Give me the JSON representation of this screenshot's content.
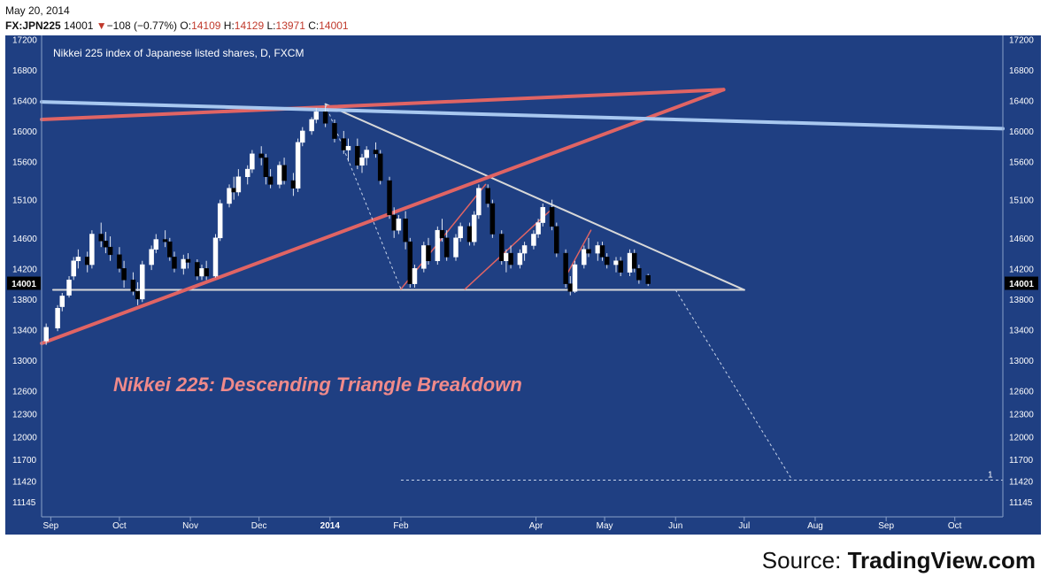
{
  "header": {
    "date": "May 20, 2014",
    "symbol": "FX:JPN225",
    "last": "14001",
    "change_arrow": "▼",
    "change": "−108 (−0.77%)",
    "open_label": "O:",
    "open": "14109",
    "high_label": "H:",
    "high": "14129",
    "low_label": "L:",
    "low": "13971",
    "close_label": "C:",
    "close": "14001"
  },
  "source": {
    "label": "Source: ",
    "site": "TradingView.com"
  },
  "chart_data": {
    "type": "candlestick",
    "subtitle": "Nikkei 225 index of Japanese listed shares, D, FXCM",
    "annotation": "Nikkei 225:  Descending Triangle Breakdown",
    "price_tag": "14001",
    "projection_label": "1",
    "x_labels": [
      "Sep",
      "Oct",
      "Nov",
      "Dec",
      "2014",
      "Feb",
      "Apr",
      "May",
      "Jun",
      "Jul",
      "Aug",
      "Sep",
      "Oct"
    ],
    "x_label_dates": [
      "2013-09-01",
      "2013-10-01",
      "2013-11-01",
      "2013-12-01",
      "2014-01-01",
      "2014-02-01",
      "2014-04-01",
      "2014-05-01",
      "2014-06-01",
      "2014-07-01",
      "2014-08-01",
      "2014-09-01",
      "2014-10-01"
    ],
    "x_range": [
      "2013-08-28",
      "2014-10-22"
    ],
    "y_ticks": [
      11145,
      11420,
      11700,
      12000,
      12300,
      12600,
      13000,
      13400,
      13800,
      14200,
      14600,
      15100,
      15600,
      16000,
      16400,
      16800,
      17200
    ],
    "ylim": [
      10950,
      17250
    ],
    "grid": false,
    "colors": {
      "background": "#1f3f82",
      "up_candle": "#ffffff",
      "down_candle": "#000000",
      "red_trendline": "#e06464",
      "blue_trendline": "#a8c8f0",
      "triangle": "#d8d8d8",
      "annotation": "#f08a8a"
    },
    "series": [
      {
        "date": "2013-08-30",
        "values": [
          13250,
          13480,
          13200,
          13430
        ]
      },
      {
        "date": "2013-09-04",
        "values": [
          13420,
          13720,
          13380,
          13680
        ]
      },
      {
        "date": "2013-09-06",
        "values": [
          13700,
          13880,
          13640,
          13840
        ]
      },
      {
        "date": "2013-09-09",
        "values": [
          13850,
          14100,
          13820,
          14050
        ]
      },
      {
        "date": "2013-09-11",
        "values": [
          14100,
          14350,
          14050,
          14300
        ]
      },
      {
        "date": "2013-09-13",
        "values": [
          14300,
          14450,
          14200,
          14350
        ]
      },
      {
        "date": "2013-09-17",
        "values": [
          14350,
          14420,
          14150,
          14250
        ]
      },
      {
        "date": "2013-09-19",
        "values": [
          14250,
          14700,
          14200,
          14650
        ]
      },
      {
        "date": "2013-09-23",
        "values": [
          14650,
          14800,
          14480,
          14560
        ]
      },
      {
        "date": "2013-09-25",
        "values": [
          14560,
          14680,
          14400,
          14480
        ]
      },
      {
        "date": "2013-09-27",
        "values": [
          14480,
          14620,
          14300,
          14380
        ]
      },
      {
        "date": "2013-10-01",
        "values": [
          14380,
          14480,
          14150,
          14200
        ]
      },
      {
        "date": "2013-10-03",
        "values": [
          14200,
          14300,
          13950,
          14050
        ]
      },
      {
        "date": "2013-10-07",
        "values": [
          14050,
          14150,
          13850,
          13900
        ]
      },
      {
        "date": "2013-10-09",
        "values": [
          13900,
          14020,
          13720,
          13800
        ]
      },
      {
        "date": "2013-10-11",
        "values": [
          13800,
          14300,
          13760,
          14250
        ]
      },
      {
        "date": "2013-10-15",
        "values": [
          14250,
          14500,
          14180,
          14450
        ]
      },
      {
        "date": "2013-10-17",
        "values": [
          14450,
          14650,
          14400,
          14580
        ]
      },
      {
        "date": "2013-10-21",
        "values": [
          14580,
          14700,
          14480,
          14550
        ]
      },
      {
        "date": "2013-10-23",
        "values": [
          14550,
          14600,
          14300,
          14350
        ]
      },
      {
        "date": "2013-10-25",
        "values": [
          14350,
          14420,
          14150,
          14200
        ]
      },
      {
        "date": "2013-10-29",
        "values": [
          14200,
          14380,
          14120,
          14320
        ]
      },
      {
        "date": "2013-10-31",
        "values": [
          14320,
          14400,
          14200,
          14280
        ]
      },
      {
        "date": "2013-11-04",
        "values": [
          14280,
          14320,
          14050,
          14100
        ]
      },
      {
        "date": "2013-11-06",
        "values": [
          14100,
          14250,
          14050,
          14200
        ]
      },
      {
        "date": "2013-11-08",
        "values": [
          14200,
          14300,
          14050,
          14100
        ]
      },
      {
        "date": "2013-11-12",
        "values": [
          14100,
          14650,
          14080,
          14600
        ]
      },
      {
        "date": "2013-11-14",
        "values": [
          14600,
          15100,
          14560,
          15050
        ]
      },
      {
        "date": "2013-11-18",
        "values": [
          15050,
          15300,
          15000,
          15250
        ]
      },
      {
        "date": "2013-11-20",
        "values": [
          15250,
          15400,
          15100,
          15200
        ]
      },
      {
        "date": "2013-11-22",
        "values": [
          15200,
          15500,
          15150,
          15400
        ]
      },
      {
        "date": "2013-11-26",
        "values": [
          15400,
          15550,
          15300,
          15500
        ]
      },
      {
        "date": "2013-11-28",
        "values": [
          15500,
          15750,
          15450,
          15700
        ]
      },
      {
        "date": "2013-12-02",
        "values": [
          15700,
          15800,
          15550,
          15650
        ]
      },
      {
        "date": "2013-12-04",
        "values": [
          15650,
          15700,
          15300,
          15400
        ]
      },
      {
        "date": "2013-12-06",
        "values": [
          15400,
          15500,
          15250,
          15300
        ]
      },
      {
        "date": "2013-12-10",
        "values": [
          15300,
          15600,
          15250,
          15550
        ]
      },
      {
        "date": "2013-12-12",
        "values": [
          15550,
          15650,
          15300,
          15350
        ]
      },
      {
        "date": "2013-12-16",
        "values": [
          15350,
          15450,
          15150,
          15250
        ]
      },
      {
        "date": "2013-12-18",
        "values": [
          15250,
          15900,
          15200,
          15850
        ]
      },
      {
        "date": "2013-12-20",
        "values": [
          15850,
          16050,
          15800,
          16000
        ]
      },
      {
        "date": "2013-12-24",
        "values": [
          16000,
          16180,
          15950,
          16150
        ]
      },
      {
        "date": "2013-12-26",
        "values": [
          16150,
          16300,
          16100,
          16250
        ]
      },
      {
        "date": "2013-12-30",
        "values": [
          16250,
          16330,
          16050,
          16100
        ]
      },
      {
        "date": "2014-01-03",
        "values": [
          16100,
          16150,
          15850,
          15900
        ]
      },
      {
        "date": "2014-01-07",
        "values": [
          15900,
          16000,
          15700,
          15750
        ]
      },
      {
        "date": "2014-01-09",
        "values": [
          15750,
          15900,
          15600,
          15800
        ]
      },
      {
        "date": "2014-01-13",
        "values": [
          15800,
          15900,
          15500,
          15550
        ]
      },
      {
        "date": "2014-01-15",
        "values": [
          15550,
          15700,
          15450,
          15650
        ]
      },
      {
        "date": "2014-01-17",
        "values": [
          15650,
          15800,
          15550,
          15750
        ]
      },
      {
        "date": "2014-01-21",
        "values": [
          15750,
          15850,
          15650,
          15700
        ]
      },
      {
        "date": "2014-01-23",
        "values": [
          15700,
          15750,
          15300,
          15350
        ]
      },
      {
        "date": "2014-01-27",
        "values": [
          15350,
          15400,
          14850,
          14900
        ]
      },
      {
        "date": "2014-01-29",
        "values": [
          14900,
          15000,
          14600,
          14700
        ]
      },
      {
        "date": "2014-01-31",
        "values": [
          14700,
          14900,
          14650,
          14850
        ]
      },
      {
        "date": "2014-02-03",
        "values": [
          14850,
          14950,
          14450,
          14550
        ]
      },
      {
        "date": "2014-02-05",
        "values": [
          14550,
          14600,
          13950,
          14000
        ]
      },
      {
        "date": "2014-02-07",
        "values": [
          14000,
          14250,
          13950,
          14200
        ]
      },
      {
        "date": "2014-02-11",
        "values": [
          14200,
          14550,
          14150,
          14500
        ]
      },
      {
        "date": "2014-02-13",
        "values": [
          14500,
          14600,
          14250,
          14300
        ]
      },
      {
        "date": "2014-02-17",
        "values": [
          14300,
          14750,
          14250,
          14700
        ]
      },
      {
        "date": "2014-02-19",
        "values": [
          14700,
          14850,
          14550,
          14600
        ]
      },
      {
        "date": "2014-02-21",
        "values": [
          14600,
          14700,
          14300,
          14350
        ]
      },
      {
        "date": "2014-02-25",
        "values": [
          14350,
          14650,
          14300,
          14600
        ]
      },
      {
        "date": "2014-02-27",
        "values": [
          14600,
          14800,
          14550,
          14750
        ]
      },
      {
        "date": "2014-03-03",
        "values": [
          14750,
          14800,
          14500,
          14550
        ]
      },
      {
        "date": "2014-03-05",
        "values": [
          14550,
          14950,
          14500,
          14900
        ]
      },
      {
        "date": "2014-03-07",
        "values": [
          14900,
          15300,
          14850,
          15250
        ]
      },
      {
        "date": "2014-03-11",
        "values": [
          15250,
          15300,
          15000,
          15050
        ]
      },
      {
        "date": "2014-03-13",
        "values": [
          15050,
          15100,
          14600,
          14650
        ]
      },
      {
        "date": "2014-03-17",
        "values": [
          14650,
          14700,
          14250,
          14300
        ]
      },
      {
        "date": "2014-03-19",
        "values": [
          14300,
          14450,
          14150,
          14400
        ]
      },
      {
        "date": "2014-03-21",
        "values": [
          14400,
          14500,
          14200,
          14250
        ]
      },
      {
        "date": "2014-03-25",
        "values": [
          14250,
          14450,
          14200,
          14400
        ]
      },
      {
        "date": "2014-03-27",
        "values": [
          14400,
          14550,
          14300,
          14500
        ]
      },
      {
        "date": "2014-03-31",
        "values": [
          14500,
          14700,
          14450,
          14650
        ]
      },
      {
        "date": "2014-04-02",
        "values": [
          14650,
          14850,
          14600,
          14800
        ]
      },
      {
        "date": "2014-04-04",
        "values": [
          14800,
          15050,
          14750,
          15000
        ]
      },
      {
        "date": "2014-04-08",
        "values": [
          15000,
          15100,
          14700,
          14750
        ]
      },
      {
        "date": "2014-04-10",
        "values": [
          14750,
          14800,
          14350,
          14400
        ]
      },
      {
        "date": "2014-04-14",
        "values": [
          14400,
          14450,
          13950,
          14000
        ]
      },
      {
        "date": "2014-04-16",
        "values": [
          14000,
          14100,
          13850,
          13900
        ]
      },
      {
        "date": "2014-04-18",
        "values": [
          13900,
          14300,
          13880,
          14250
        ]
      },
      {
        "date": "2014-04-22",
        "values": [
          14250,
          14500,
          14200,
          14450
        ]
      },
      {
        "date": "2014-04-24",
        "values": [
          14450,
          14600,
          14350,
          14400
        ]
      },
      {
        "date": "2014-04-28",
        "values": [
          14400,
          14550,
          14300,
          14500
        ]
      },
      {
        "date": "2014-04-30",
        "values": [
          14500,
          14550,
          14300,
          14350
        ]
      },
      {
        "date": "2014-05-02",
        "values": [
          14350,
          14400,
          14200,
          14250
        ]
      },
      {
        "date": "2014-05-06",
        "values": [
          14250,
          14350,
          14150,
          14300
        ]
      },
      {
        "date": "2014-05-08",
        "values": [
          14300,
          14350,
          14100,
          14150
        ]
      },
      {
        "date": "2014-05-12",
        "values": [
          14150,
          14450,
          14100,
          14400
        ]
      },
      {
        "date": "2014-05-14",
        "values": [
          14400,
          14450,
          14150,
          14200
        ]
      },
      {
        "date": "2014-05-16",
        "values": [
          14200,
          14250,
          14000,
          14050
        ]
      },
      {
        "date": "2014-05-20",
        "values": [
          14109,
          14129,
          13971,
          14001
        ]
      }
    ],
    "trendlines": [
      {
        "name": "triangle-upper",
        "color": "#d8d8d8",
        "points": [
          [
            "2013-12-30",
            16350
          ],
          [
            "2014-07-01",
            13920
          ]
        ]
      },
      {
        "name": "triangle-base",
        "color": "#d8d8d8",
        "points": [
          [
            "2013-09-02",
            13920
          ],
          [
            "2014-07-01",
            13920
          ]
        ]
      },
      {
        "name": "red-rising",
        "color": "#e06464",
        "points": [
          [
            "2013-08-28",
            13220
          ],
          [
            "2014-06-22",
            16540
          ]
        ]
      },
      {
        "name": "red-upper",
        "color": "#e06464",
        "points": [
          [
            "2013-08-28",
            16150
          ],
          [
            "2014-06-22",
            16540
          ]
        ]
      },
      {
        "name": "blue-descending",
        "color": "#a8c8f0",
        "points": [
          [
            "2013-08-28",
            16380
          ],
          [
            "2014-10-22",
            16030
          ]
        ]
      },
      {
        "name": "channel-1",
        "color": "#e06464",
        "points": [
          [
            "2014-02-01",
            13930
          ],
          [
            "2014-03-10",
            15300
          ]
        ]
      },
      {
        "name": "channel-2",
        "color": "#e06464",
        "points": [
          [
            "2014-03-01",
            13930
          ],
          [
            "2014-04-08",
            14980
          ]
        ]
      },
      {
        "name": "channel-3",
        "color": "#e06464",
        "points": [
          [
            "2014-04-15",
            14150
          ],
          [
            "2014-04-25",
            14700
          ]
        ]
      }
    ],
    "projection_lines": [
      {
        "name": "drop-1",
        "points": [
          [
            "2013-12-30",
            16350
          ],
          [
            "2014-02-01",
            13930
          ]
        ]
      },
      {
        "name": "drop-2",
        "points": [
          [
            "2014-06-01",
            13920
          ],
          [
            "2014-07-22",
            11430
          ]
        ]
      },
      {
        "name": "target",
        "points": [
          [
            "2014-02-01",
            11430
          ],
          [
            "2014-10-22",
            11430
          ]
        ]
      }
    ]
  }
}
